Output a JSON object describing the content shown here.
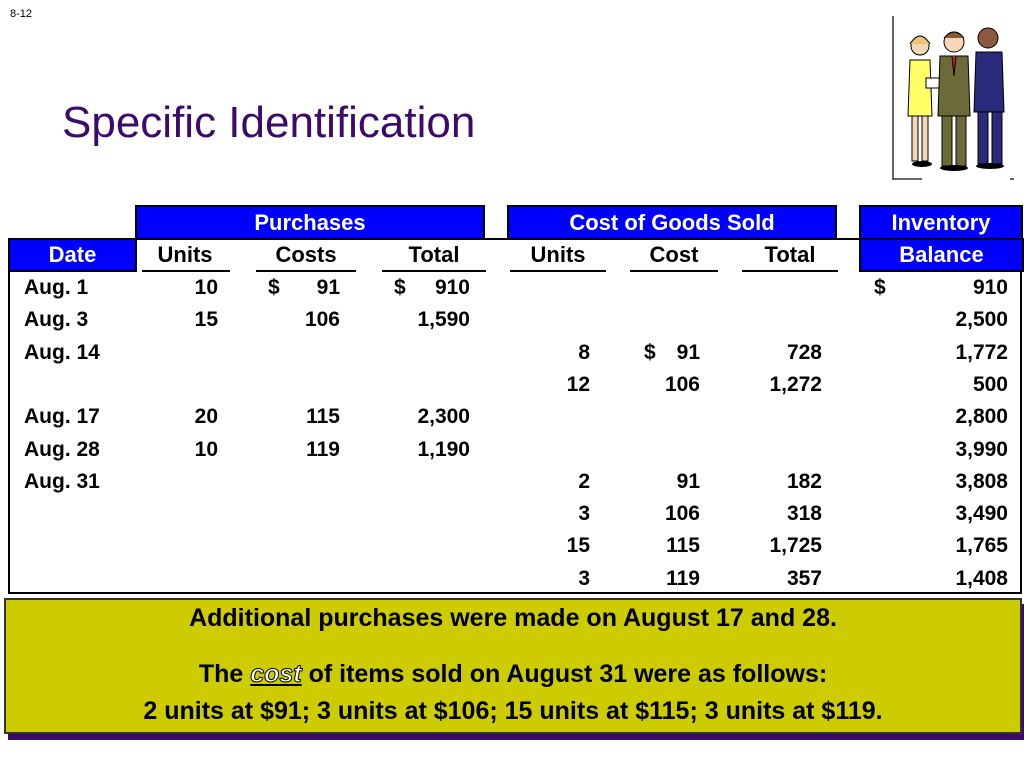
{
  "slide_number": "8-12",
  "title": "Specific Identification",
  "headers": {
    "purchases": "Purchases",
    "cogs": "Cost of Goods Sold",
    "inventory_line1": "Inventory",
    "inventory_line2": "Balance",
    "date": "Date",
    "p_units": "Units",
    "p_costs": "Costs",
    "p_total": "Total",
    "c_units": "Units",
    "c_cost": "Cost",
    "c_total": "Total"
  },
  "rows": [
    {
      "date": "Aug. 1",
      "p_units": "10",
      "p_cost_sign": "$",
      "p_cost": "91",
      "p_total_sign": "$",
      "p_total": "910",
      "c_units": "",
      "c_cost_sign": "",
      "c_cost": "",
      "c_total": "",
      "bal_sign": "$",
      "balance": "910"
    },
    {
      "date": "Aug. 3",
      "p_units": "15",
      "p_cost_sign": "",
      "p_cost": "106",
      "p_total_sign": "",
      "p_total": "1,590",
      "c_units": "",
      "c_cost_sign": "",
      "c_cost": "",
      "c_total": "",
      "bal_sign": "",
      "balance": "2,500"
    },
    {
      "date": "Aug. 14",
      "p_units": "",
      "p_cost_sign": "",
      "p_cost": "",
      "p_total_sign": "",
      "p_total": "",
      "c_units": "8",
      "c_cost_sign": "$",
      "c_cost": "91",
      "c_total": "728",
      "bal_sign": "",
      "balance": "1,772"
    },
    {
      "date": "",
      "p_units": "",
      "p_cost_sign": "",
      "p_cost": "",
      "p_total_sign": "",
      "p_total": "",
      "c_units": "12",
      "c_cost_sign": "",
      "c_cost": "106",
      "c_total": "1,272",
      "bal_sign": "",
      "balance": "500"
    },
    {
      "date": "Aug. 17",
      "p_units": "20",
      "p_cost_sign": "",
      "p_cost": "115",
      "p_total_sign": "",
      "p_total": "2,300",
      "c_units": "",
      "c_cost_sign": "",
      "c_cost": "",
      "c_total": "",
      "bal_sign": "",
      "balance": "2,800"
    },
    {
      "date": "Aug. 28",
      "p_units": "10",
      "p_cost_sign": "",
      "p_cost": "119",
      "p_total_sign": "",
      "p_total": "1,190",
      "c_units": "",
      "c_cost_sign": "",
      "c_cost": "",
      "c_total": "",
      "bal_sign": "",
      "balance": "3,990"
    },
    {
      "date": "Aug. 31",
      "p_units": "",
      "p_cost_sign": "",
      "p_cost": "",
      "p_total_sign": "",
      "p_total": "",
      "c_units": "2",
      "c_cost_sign": "",
      "c_cost": "91",
      "c_total": "182",
      "bal_sign": "",
      "balance": "3,808"
    },
    {
      "date": "",
      "p_units": "",
      "p_cost_sign": "",
      "p_cost": "",
      "p_total_sign": "",
      "p_total": "",
      "c_units": "3",
      "c_cost_sign": "",
      "c_cost": "106",
      "c_total": "318",
      "bal_sign": "",
      "balance": "3,490"
    },
    {
      "date": "",
      "p_units": "",
      "p_cost_sign": "",
      "p_cost": "",
      "p_total_sign": "",
      "p_total": "",
      "c_units": "15",
      "c_cost_sign": "",
      "c_cost": "115",
      "c_total": "1,725",
      "bal_sign": "",
      "balance": "1,765"
    },
    {
      "date": "",
      "p_units": "",
      "p_cost_sign": "",
      "p_cost": "",
      "p_total_sign": "",
      "p_total": "",
      "c_units": "3",
      "c_cost_sign": "",
      "c_cost": "119",
      "c_total": "357",
      "bal_sign": "",
      "balance": "1,408"
    }
  ],
  "note": {
    "line1": "Additional purchases were made on August 17 and 28.",
    "line2_pre": "The",
    "line2_em": "cost",
    "line2_post": "of items sold on August 31 were as follows:",
    "line3": "2 units at $91; 3 units at $106; 15 units at $115; 3 units at $119."
  },
  "colors": {
    "title": "#3b0a6b",
    "header_bg": "#0000ff",
    "note_bg": "#cccc00"
  },
  "icons": {
    "clipart": "business-people-clipart"
  }
}
